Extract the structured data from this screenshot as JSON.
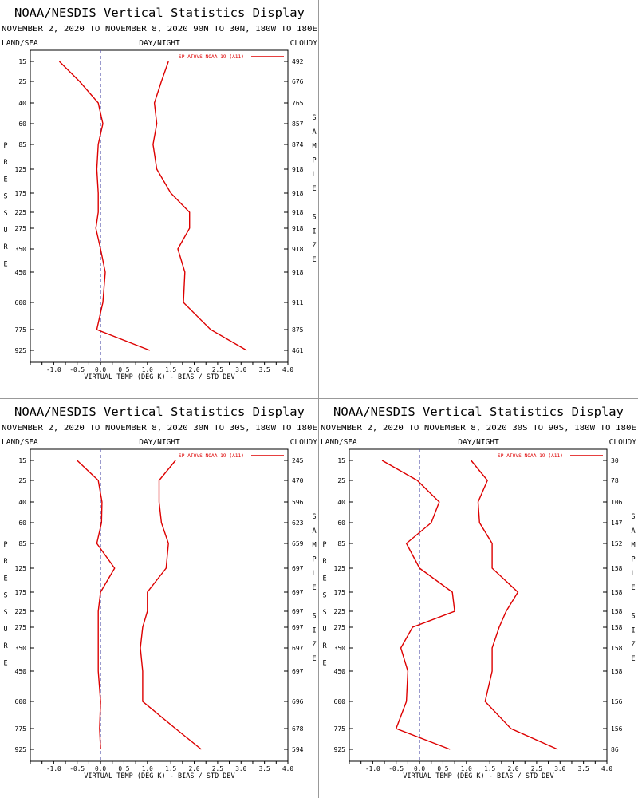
{
  "display_title": "NOAA/NESDIS Vertical Statistics Display",
  "labels": {
    "land_sea": "LAND/SEA",
    "day_night": "DAY/NIGHT",
    "cloudy": "CLOUDY",
    "left_axis": "PRESSURE",
    "right_axis": "SAMPLE SIZE",
    "legend": "SP ATOVS NOAA-19 (A11)",
    "xlabel": "VIRTUAL TEMP (DEG K) - BIAS / STD DEV"
  },
  "colors": {
    "series": "#dd0000",
    "zero_line": "#5555aa"
  },
  "chart_data": [
    {
      "type": "line",
      "subtitle": "NOVEMBER 2, 2020 TO NOVEMBER 8, 2020 90N TO 30N, 180W TO 180E",
      "pressure_levels": [
        "15",
        "25",
        "40",
        "60",
        "85",
        "125",
        "175",
        "225",
        "275",
        "350",
        "450",
        "600",
        "775",
        "925"
      ],
      "sample_size": [
        "492",
        "676",
        "765",
        "857",
        "874",
        "918",
        "918",
        "918",
        "918",
        "918",
        "918",
        "911",
        "875",
        "461"
      ],
      "xlim": [
        -1.5,
        4.0
      ],
      "x_ticks": [
        "-1.0",
        "-0.5",
        "0.0",
        "0.5",
        "1.0",
        "1.5",
        "2.0",
        "2.5",
        "3.0",
        "3.5",
        "4.0"
      ],
      "series": [
        {
          "name": "BIAS",
          "values": [
            -0.88,
            -0.45,
            -0.05,
            0.05,
            -0.05,
            -0.08,
            -0.05,
            -0.05,
            -0.1,
            0.0,
            0.1,
            0.05,
            -0.08,
            1.05
          ]
        },
        {
          "name": "STD DEV",
          "values": [
            1.45,
            1.3,
            1.15,
            1.2,
            1.12,
            1.2,
            1.5,
            1.9,
            1.9,
            1.65,
            1.8,
            1.77,
            2.35,
            3.12
          ]
        }
      ]
    },
    {
      "type": "line",
      "subtitle": "NOVEMBER 2, 2020 TO NOVEMBER 8, 2020 30N TO 30S, 180W TO 180E",
      "pressure_levels": [
        "15",
        "25",
        "40",
        "60",
        "85",
        "125",
        "175",
        "225",
        "275",
        "350",
        "450",
        "600",
        "775",
        "925"
      ],
      "sample_size": [
        "245",
        "470",
        "596",
        "623",
        "659",
        "697",
        "697",
        "697",
        "697",
        "697",
        "697",
        "696",
        "678",
        "594"
      ],
      "xlim": [
        -1.5,
        4.0
      ],
      "x_ticks": [
        "-1.0",
        "-0.5",
        "0.0",
        "0.5",
        "1.0",
        "1.5",
        "2.0",
        "2.5",
        "3.0",
        "3.5",
        "4.0"
      ],
      "series": [
        {
          "name": "BIAS",
          "values": [
            -0.5,
            -0.05,
            0.03,
            0.02,
            -0.08,
            0.3,
            0.0,
            -0.05,
            -0.05,
            -0.05,
            -0.05,
            0.0,
            -0.02,
            0.0
          ]
        },
        {
          "name": "STD DEV",
          "values": [
            1.6,
            1.25,
            1.25,
            1.3,
            1.45,
            1.4,
            1.0,
            1.0,
            0.9,
            0.85,
            0.9,
            0.9,
            1.6,
            2.15
          ]
        }
      ]
    },
    {
      "type": "line",
      "subtitle": "NOVEMBER 2, 2020 TO NOVEMBER 8, 2020 30S TO 90S, 180W TO 180E",
      "pressure_levels": [
        "15",
        "25",
        "40",
        "60",
        "85",
        "125",
        "175",
        "225",
        "275",
        "350",
        "450",
        "600",
        "775",
        "925"
      ],
      "sample_size": [
        "30",
        "78",
        "106",
        "147",
        "152",
        "158",
        "158",
        "158",
        "158",
        "158",
        "158",
        "156",
        "156",
        "86"
      ],
      "xlim": [
        -1.5,
        4.0
      ],
      "x_ticks": [
        "-1.0",
        "-0.5",
        "0.0",
        "0.5",
        "1.0",
        "1.5",
        "2.0",
        "2.5",
        "3.0",
        "3.5",
        "4.0"
      ],
      "series": [
        {
          "name": "BIAS",
          "values": [
            -0.8,
            -0.05,
            0.42,
            0.25,
            -0.28,
            0.0,
            0.7,
            0.75,
            -0.15,
            -0.4,
            -0.25,
            -0.28,
            -0.5,
            0.65
          ]
        },
        {
          "name": "STD DEV",
          "values": [
            1.1,
            1.45,
            1.25,
            1.28,
            1.55,
            1.55,
            2.1,
            1.85,
            1.7,
            1.55,
            1.55,
            1.4,
            1.95,
            2.95
          ]
        }
      ]
    }
  ]
}
